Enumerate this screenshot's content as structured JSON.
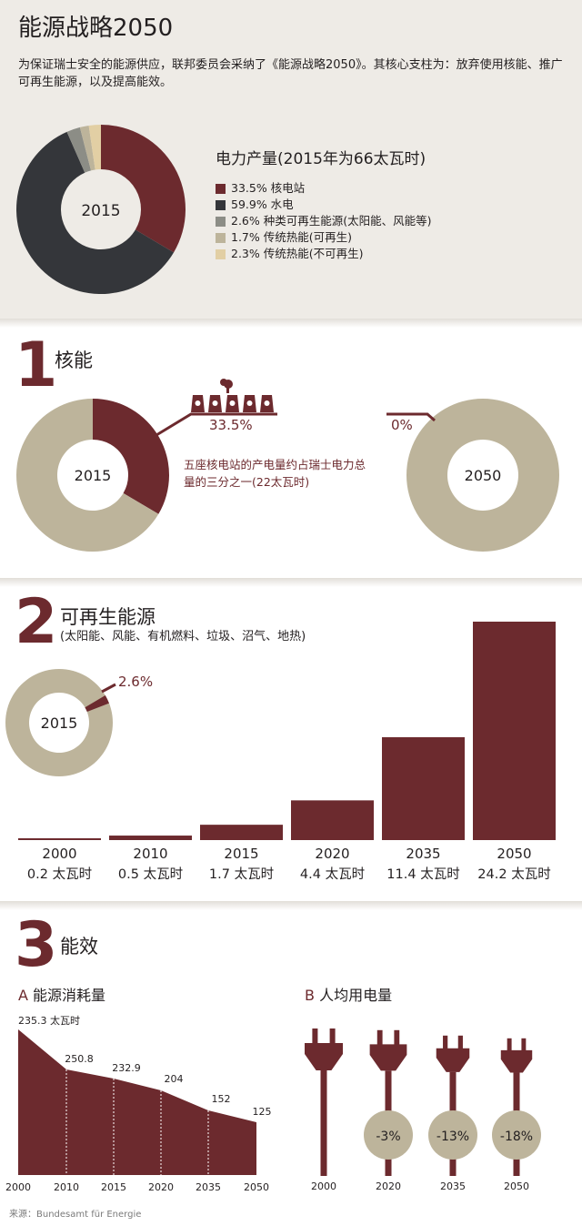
{
  "header": {
    "title": "能源战略2050",
    "intro": "为保证瑞士安全的能源供应，联邦委员会采纳了《能源战略2050》。其核心支柱为：放弃使用核能、推广可再生能源，以及提高能效。"
  },
  "colors": {
    "maroon": "#6c2a2e",
    "dark": "#34363a",
    "grey": "#8c8d86",
    "beige": "#bdb49b",
    "light": "#e2cfa4",
    "panel": "#eeebe6"
  },
  "overview": {
    "title": "电力产量(2015年为66太瓦时)",
    "center_label": "2015",
    "items": [
      {
        "value": 33.5,
        "label": "33.5% 核电站",
        "color": "#6c2a2e"
      },
      {
        "value": 59.9,
        "label": "59.9% 水电",
        "color": "#34363a"
      },
      {
        "value": 2.6,
        "label": "2.6% 种类可再生能源(太阳能、风能等)",
        "color": "#8c8d86"
      },
      {
        "value": 1.7,
        "label": "1.7% 传统热能(可再生)",
        "color": "#bdb49b"
      },
      {
        "value": 2.3,
        "label": "2.3% 传统热能(不可再生)",
        "color": "#e2cfa4"
      }
    ]
  },
  "section1": {
    "number": "1",
    "title": "核能",
    "donut_2015": {
      "label": "2015",
      "share": 33.5,
      "pct_label": "33.5%"
    },
    "donut_2050": {
      "label": "2050",
      "share": 0,
      "pct_label": "0%"
    },
    "note": "五座核电站的产电量约占瑞士电力总量的三分之一(22太瓦时)",
    "plants": 5
  },
  "section2": {
    "number": "2",
    "title": "可再生能源",
    "subtitle": "(太阳能、风能、有机燃料、垃圾、沼气、地热)",
    "donut": {
      "label": "2015",
      "share": 2.6,
      "pct_label": "2.6%"
    }
  },
  "chart_data": [
    {
      "type": "bar",
      "title": "",
      "categories": [
        "2000",
        "2010",
        "2015",
        "2020",
        "2035",
        "2050"
      ],
      "values": [
        0.2,
        0.5,
        1.7,
        4.4,
        11.4,
        24.2
      ],
      "value_labels": [
        "0.2 太瓦时",
        "0.5 太瓦时",
        "1.7 太瓦时",
        "4.4 太瓦时",
        "11.4 太瓦时",
        "24.2 太瓦时"
      ]
    },
    {
      "type": "area",
      "title": "能源消耗量",
      "prefix": "A",
      "x": [
        "2000",
        "2010",
        "2015",
        "2020",
        "2035",
        "2050"
      ],
      "y": [
        235.3,
        250.8,
        232.9,
        204,
        152,
        125
      ],
      "labels": [
        "235.3 太瓦时",
        "250.8",
        "232.9",
        "204",
        "152",
        "125"
      ]
    }
  ],
  "section3": {
    "number": "3",
    "title": "能效",
    "per_capita": {
      "prefix": "B",
      "title": "人均用电量",
      "years": [
        "2000",
        "2020",
        "2035",
        "2050"
      ],
      "changes": [
        "",
        "-3%",
        "-13%",
        "-18%"
      ],
      "relative": [
        1,
        0.97,
        0.87,
        0.82
      ]
    }
  },
  "source": "来源：Bundesamt für Energie"
}
